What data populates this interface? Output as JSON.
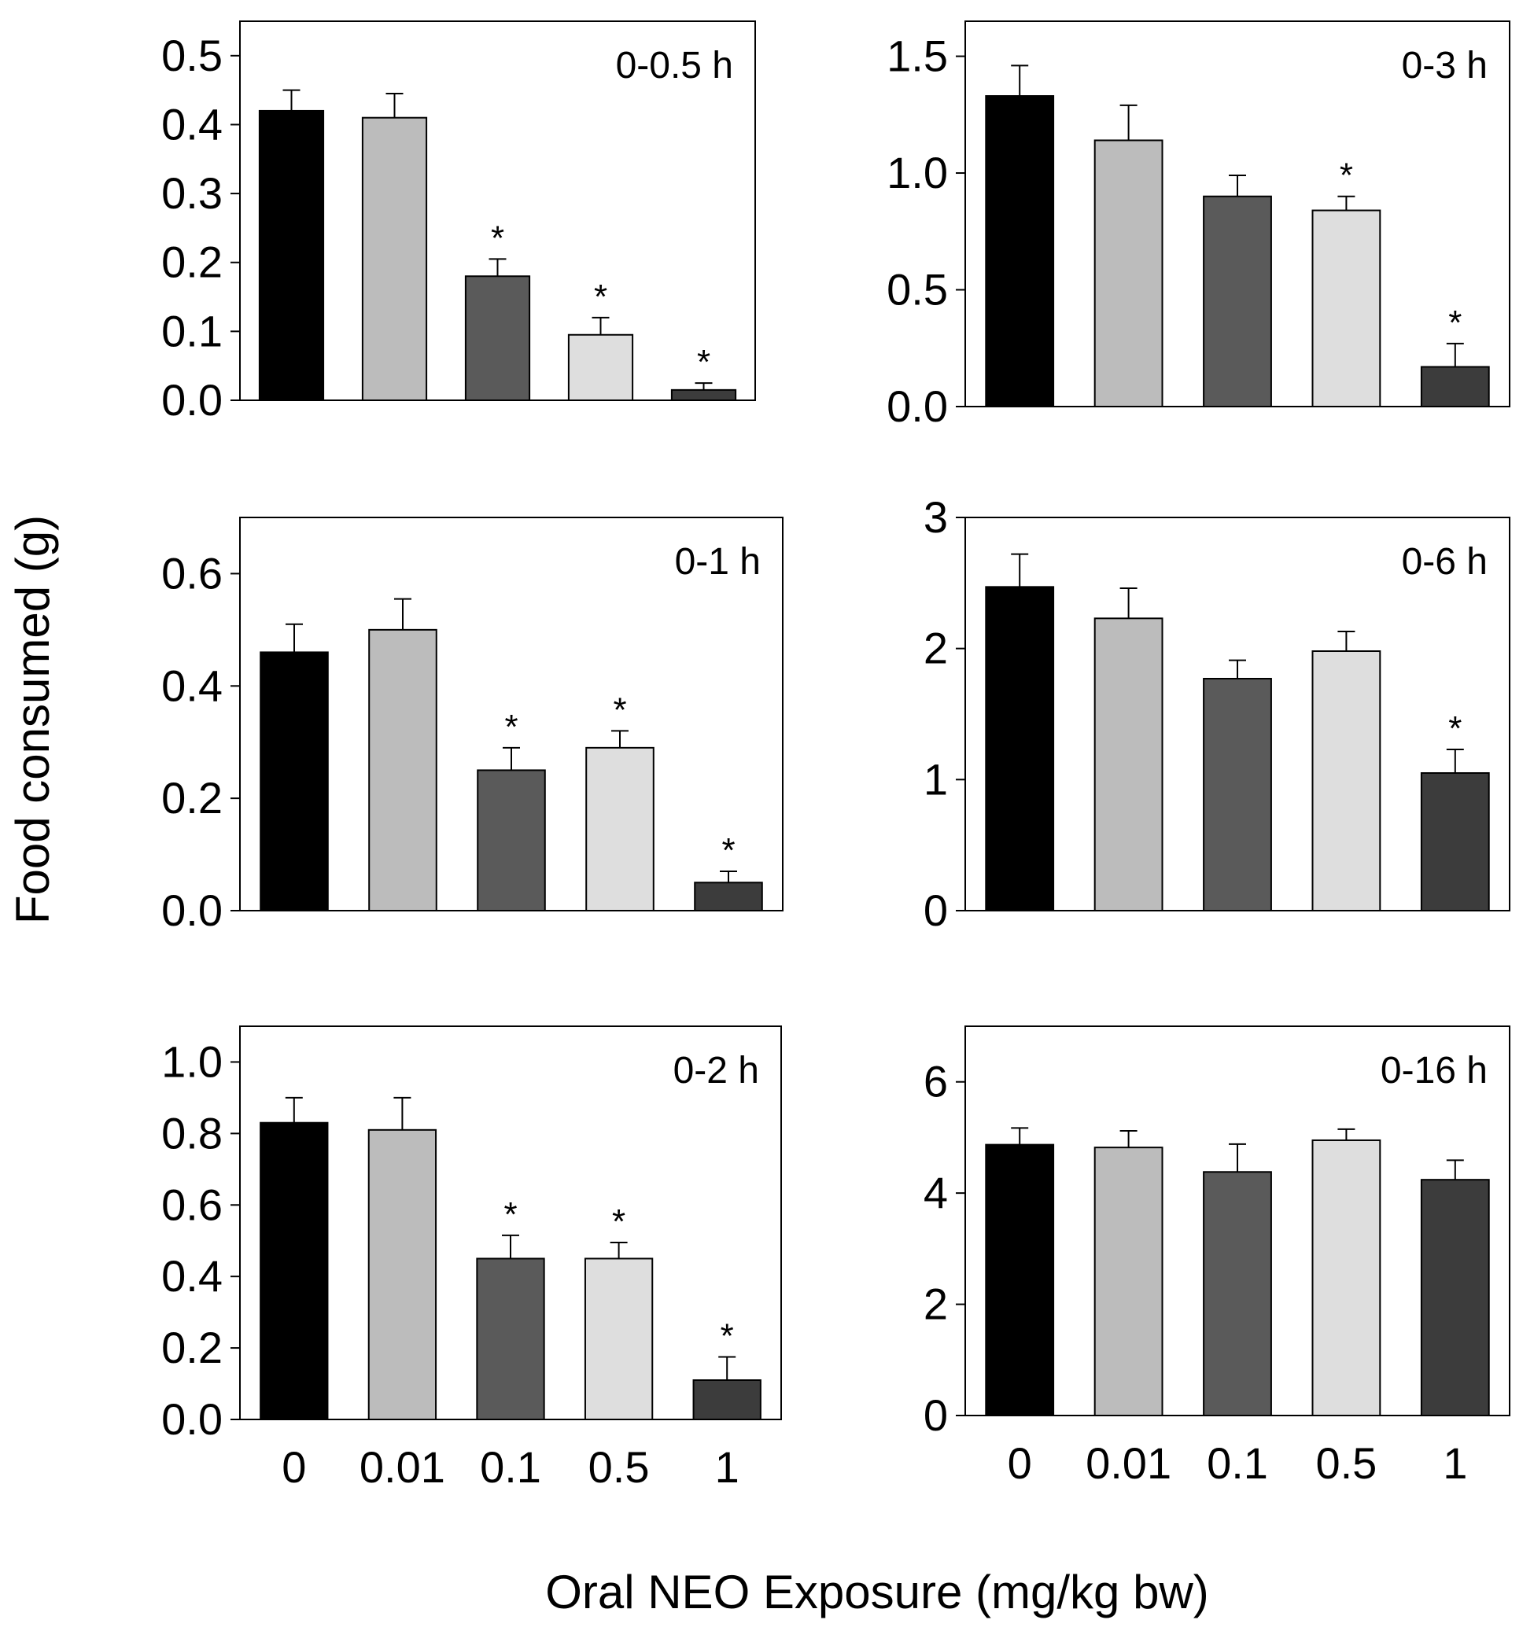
{
  "figure": {
    "ylabel": "Food consumed (g)",
    "xlabel": "Oral NEO Exposure (mg/kg bw)",
    "categories": [
      "0",
      "0.01",
      "0.1",
      "0.5",
      "1"
    ],
    "colors": [
      "#000000",
      "#bcbcbc",
      "#5a5a5a",
      "#dedede",
      "#3c3c3c"
    ]
  },
  "chart_data": [
    {
      "type": "bar",
      "title": "0-0.5 h",
      "categories": [
        "0",
        "0.01",
        "0.1",
        "0.5",
        "1"
      ],
      "values": [
        0.42,
        0.41,
        0.18,
        0.095,
        0.015
      ],
      "errors": [
        0.03,
        0.035,
        0.025,
        0.025,
        0.01
      ],
      "significant": [
        false,
        false,
        true,
        true,
        true
      ],
      "ylim": [
        0,
        0.55
      ],
      "yticks": [
        0.0,
        0.1,
        0.2,
        0.3,
        0.4,
        0.5
      ],
      "ytick_labels": [
        "0.0",
        "0.1",
        "0.2",
        "0.3",
        "0.4",
        "0.5"
      ],
      "show_xtick_labels": false
    },
    {
      "type": "bar",
      "title": "0-3 h",
      "categories": [
        "0",
        "0.01",
        "0.1",
        "0.5",
        "1"
      ],
      "values": [
        1.33,
        1.14,
        0.9,
        0.84,
        0.17
      ],
      "errors": [
        0.13,
        0.15,
        0.09,
        0.06,
        0.1
      ],
      "significant": [
        false,
        false,
        false,
        true,
        true
      ],
      "ylim": [
        0,
        1.65
      ],
      "yticks": [
        0.0,
        0.5,
        1.0,
        1.5
      ],
      "ytick_labels": [
        "0.0",
        "0.5",
        "1.0",
        "1.5"
      ],
      "show_xtick_labels": false
    },
    {
      "type": "bar",
      "title": "0-1 h",
      "categories": [
        "0",
        "0.01",
        "0.1",
        "0.5",
        "1"
      ],
      "values": [
        0.46,
        0.5,
        0.25,
        0.29,
        0.05
      ],
      "errors": [
        0.05,
        0.055,
        0.04,
        0.03,
        0.02
      ],
      "significant": [
        false,
        false,
        true,
        true,
        true
      ],
      "ylim": [
        0,
        0.7
      ],
      "yticks": [
        0.0,
        0.2,
        0.4,
        0.6
      ],
      "ytick_labels": [
        "0.0",
        "0.2",
        "0.4",
        "0.6"
      ],
      "show_xtick_labels": false
    },
    {
      "type": "bar",
      "title": "0-6 h",
      "categories": [
        "0",
        "0.01",
        "0.1",
        "0.5",
        "1"
      ],
      "values": [
        2.47,
        2.23,
        1.77,
        1.98,
        1.05
      ],
      "errors": [
        0.25,
        0.23,
        0.14,
        0.15,
        0.18
      ],
      "significant": [
        false,
        false,
        false,
        false,
        true
      ],
      "ylim": [
        0,
        3
      ],
      "yticks": [
        0,
        1,
        2,
        3
      ],
      "ytick_labels": [
        "0",
        "1",
        "2",
        "3"
      ],
      "show_xtick_labels": false
    },
    {
      "type": "bar",
      "title": "0-2 h",
      "categories": [
        "0",
        "0.01",
        "0.1",
        "0.5",
        "1"
      ],
      "values": [
        0.83,
        0.81,
        0.45,
        0.45,
        0.11
      ],
      "errors": [
        0.07,
        0.09,
        0.065,
        0.045,
        0.065
      ],
      "significant": [
        false,
        false,
        true,
        true,
        true
      ],
      "ylim": [
        0,
        1.1
      ],
      "yticks": [
        0.0,
        0.2,
        0.4,
        0.6,
        0.8,
        1.0
      ],
      "ytick_labels": [
        "0.0",
        "0.2",
        "0.4",
        "0.6",
        "0.8",
        "1.0"
      ],
      "show_xtick_labels": true
    },
    {
      "type": "bar",
      "title": "0-16 h",
      "categories": [
        "0",
        "0.01",
        "0.1",
        "0.5",
        "1"
      ],
      "values": [
        4.87,
        4.82,
        4.38,
        4.95,
        4.24
      ],
      "errors": [
        0.3,
        0.3,
        0.5,
        0.2,
        0.35
      ],
      "significant": [
        false,
        false,
        false,
        false,
        false
      ],
      "ylim": [
        0,
        7
      ],
      "yticks": [
        0,
        2,
        4,
        6
      ],
      "ytick_labels": [
        "0",
        "2",
        "4",
        "6"
      ],
      "show_xtick_labels": true
    }
  ]
}
